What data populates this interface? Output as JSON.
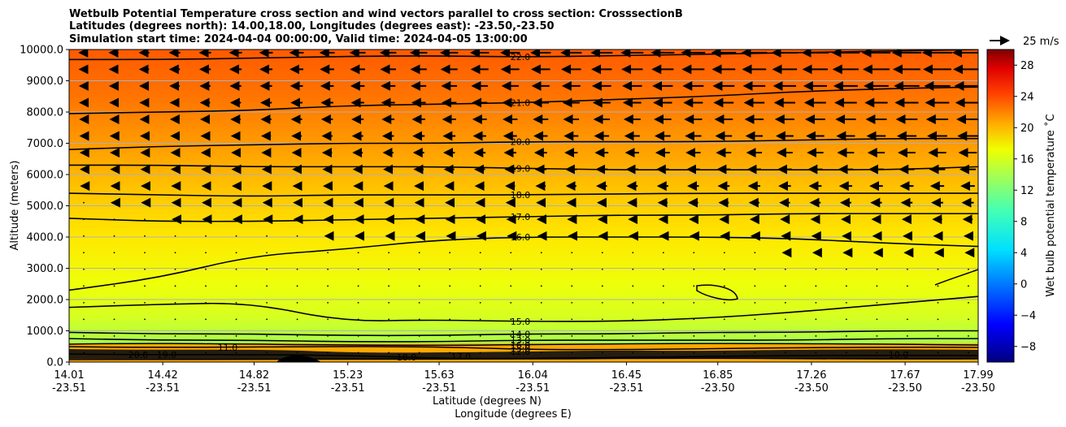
{
  "chart_data": {
    "type": "heatmap",
    "title_lines": [
      "Wetbulb Potential Temperature cross section and wind vectors parallel to cross section: CrosssectionB",
      "Latitudes (degrees north): 14.00,18.00, Longitudes (degrees east): -23.50,-23.50",
      "Simulation start time: 2024-04-04 00:00:00, Valid time: 2024-04-05 13:00:00"
    ],
    "ylabel": "Altitude (meters)",
    "xlabel_1": "Latitude (degrees N)",
    "xlabel_2": "Longitude (degrees E)",
    "ylim": [
      0,
      10000
    ],
    "yticks": [
      "0.0",
      "1000.0",
      "2000.0",
      "3000.0",
      "4000.0",
      "5000.0",
      "6000.0",
      "7000.0",
      "8000.0",
      "9000.0",
      "10000.0"
    ],
    "ytick_values": [
      0,
      1000,
      2000,
      3000,
      4000,
      5000,
      6000,
      7000,
      8000,
      9000,
      10000
    ],
    "xlim": [
      14.01,
      17.99
    ],
    "xticks_lat": [
      "14.01",
      "14.42",
      "14.82",
      "15.23",
      "15.63",
      "16.04",
      "16.45",
      "16.85",
      "17.26",
      "17.67",
      "17.99"
    ],
    "xticks_lon": [
      "-23.51",
      "-23.51",
      "-23.51",
      "-23.51",
      "-23.51",
      "-23.51",
      "-23.51",
      "-23.50",
      "-23.50",
      "-23.50",
      "-23.50"
    ],
    "xtick_values": [
      14.01,
      14.42,
      14.82,
      15.23,
      15.63,
      16.04,
      16.45,
      16.85,
      17.26,
      17.67,
      17.99
    ],
    "colorbar": {
      "label": "Wet bulb potential temperature ˚C",
      "range": [
        -10,
        30
      ],
      "ticks": [
        "−8",
        "−4",
        "0",
        "4",
        "8",
        "12",
        "16",
        "20",
        "24",
        "28"
      ],
      "tick_values": [
        -8,
        -4,
        0,
        4,
        8,
        12,
        16,
        20,
        24,
        28
      ],
      "colormap": "jet"
    },
    "quiver_key": "25 m/s",
    "contours": [
      {
        "level": 22.0,
        "label": "22.0",
        "altitudes": [
          9680,
          9680,
          9720,
          9780,
          9800,
          9760,
          9800,
          9850,
          9900,
          9950,
          10000
        ]
      },
      {
        "level": 21.0,
        "label": "21.0",
        "altitudes": [
          7950,
          8000,
          8050,
          8200,
          8250,
          8300,
          8400,
          8500,
          8650,
          8750,
          8800
        ]
      },
      {
        "level": 20.0,
        "label": "20.0",
        "altitudes": [
          6800,
          6900,
          6950,
          7000,
          7000,
          7050,
          7050,
          7050,
          7100,
          7150,
          7150
        ]
      },
      {
        "level": 19.0,
        "label": "19.0",
        "altitudes": [
          6300,
          6300,
          6250,
          6250,
          6250,
          6200,
          6150,
          6150,
          6150,
          6150,
          6250
        ]
      },
      {
        "level": 18.0,
        "label": "18.0",
        "altitudes": [
          5400,
          5350,
          5300,
          5350,
          5350,
          5350,
          5380,
          5400,
          5400,
          5400,
          5400
        ]
      },
      {
        "level": 17.0,
        "label": "17.0",
        "altitudes": [
          4600,
          4500,
          4500,
          4550,
          4600,
          4650,
          4700,
          4700,
          4750,
          4750,
          4750
        ]
      },
      {
        "level": 16.0,
        "label": "16.0",
        "altitudes": [
          2300,
          2700,
          3400,
          3600,
          3900,
          4000,
          4000,
          4000,
          3950,
          3800,
          3700
        ]
      },
      {
        "level": 15.0,
        "label": "15.0",
        "altitudes": [
          1750,
          1850,
          1900,
          1300,
          1350,
          1300,
          1300,
          1400,
          1600,
          1850,
          2100
        ]
      },
      {
        "level": 14.0,
        "label": "14.0",
        "altitudes": [
          950,
          900,
          900,
          850,
          850,
          900,
          900,
          950,
          950,
          1000,
          1000
        ]
      },
      {
        "level": 13.0,
        "label": "13.0",
        "altitudes": [
          750,
          700,
          700,
          650,
          650,
          700,
          700,
          700,
          700,
          750,
          750
        ]
      }
    ],
    "contour_labels_low": [
      "20.0",
      "19.0",
      "18.0",
      "17.0",
      "16.0",
      "15.0",
      "12.0",
      "11.0",
      "10.0"
    ]
  }
}
